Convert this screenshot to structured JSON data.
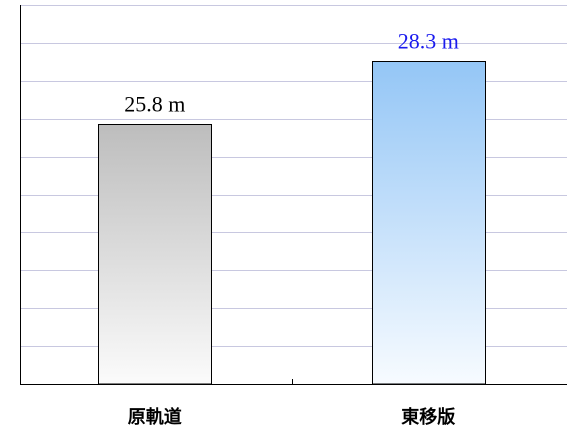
{
  "chart_data": {
    "type": "bar",
    "categories": [
      "原軌道",
      "東移版"
    ],
    "values": [
      25.8,
      28.3
    ],
    "value_labels": [
      "25.8 m",
      "28.3 m"
    ],
    "title": "",
    "xlabel": "",
    "ylabel": "",
    "ylim": [
      15.5,
      30.5
    ],
    "grid": true,
    "legend": "none",
    "colors": {
      "bar_1_top": "#bdbdbd",
      "bar_1_bottom": "#fbfbfb",
      "bar_2_top": "#94c6f6",
      "bar_2_bottom": "#f7fbff",
      "label_1": "#000000",
      "label_2": "#1a1aee",
      "gridline": "#c8c8e0"
    }
  }
}
